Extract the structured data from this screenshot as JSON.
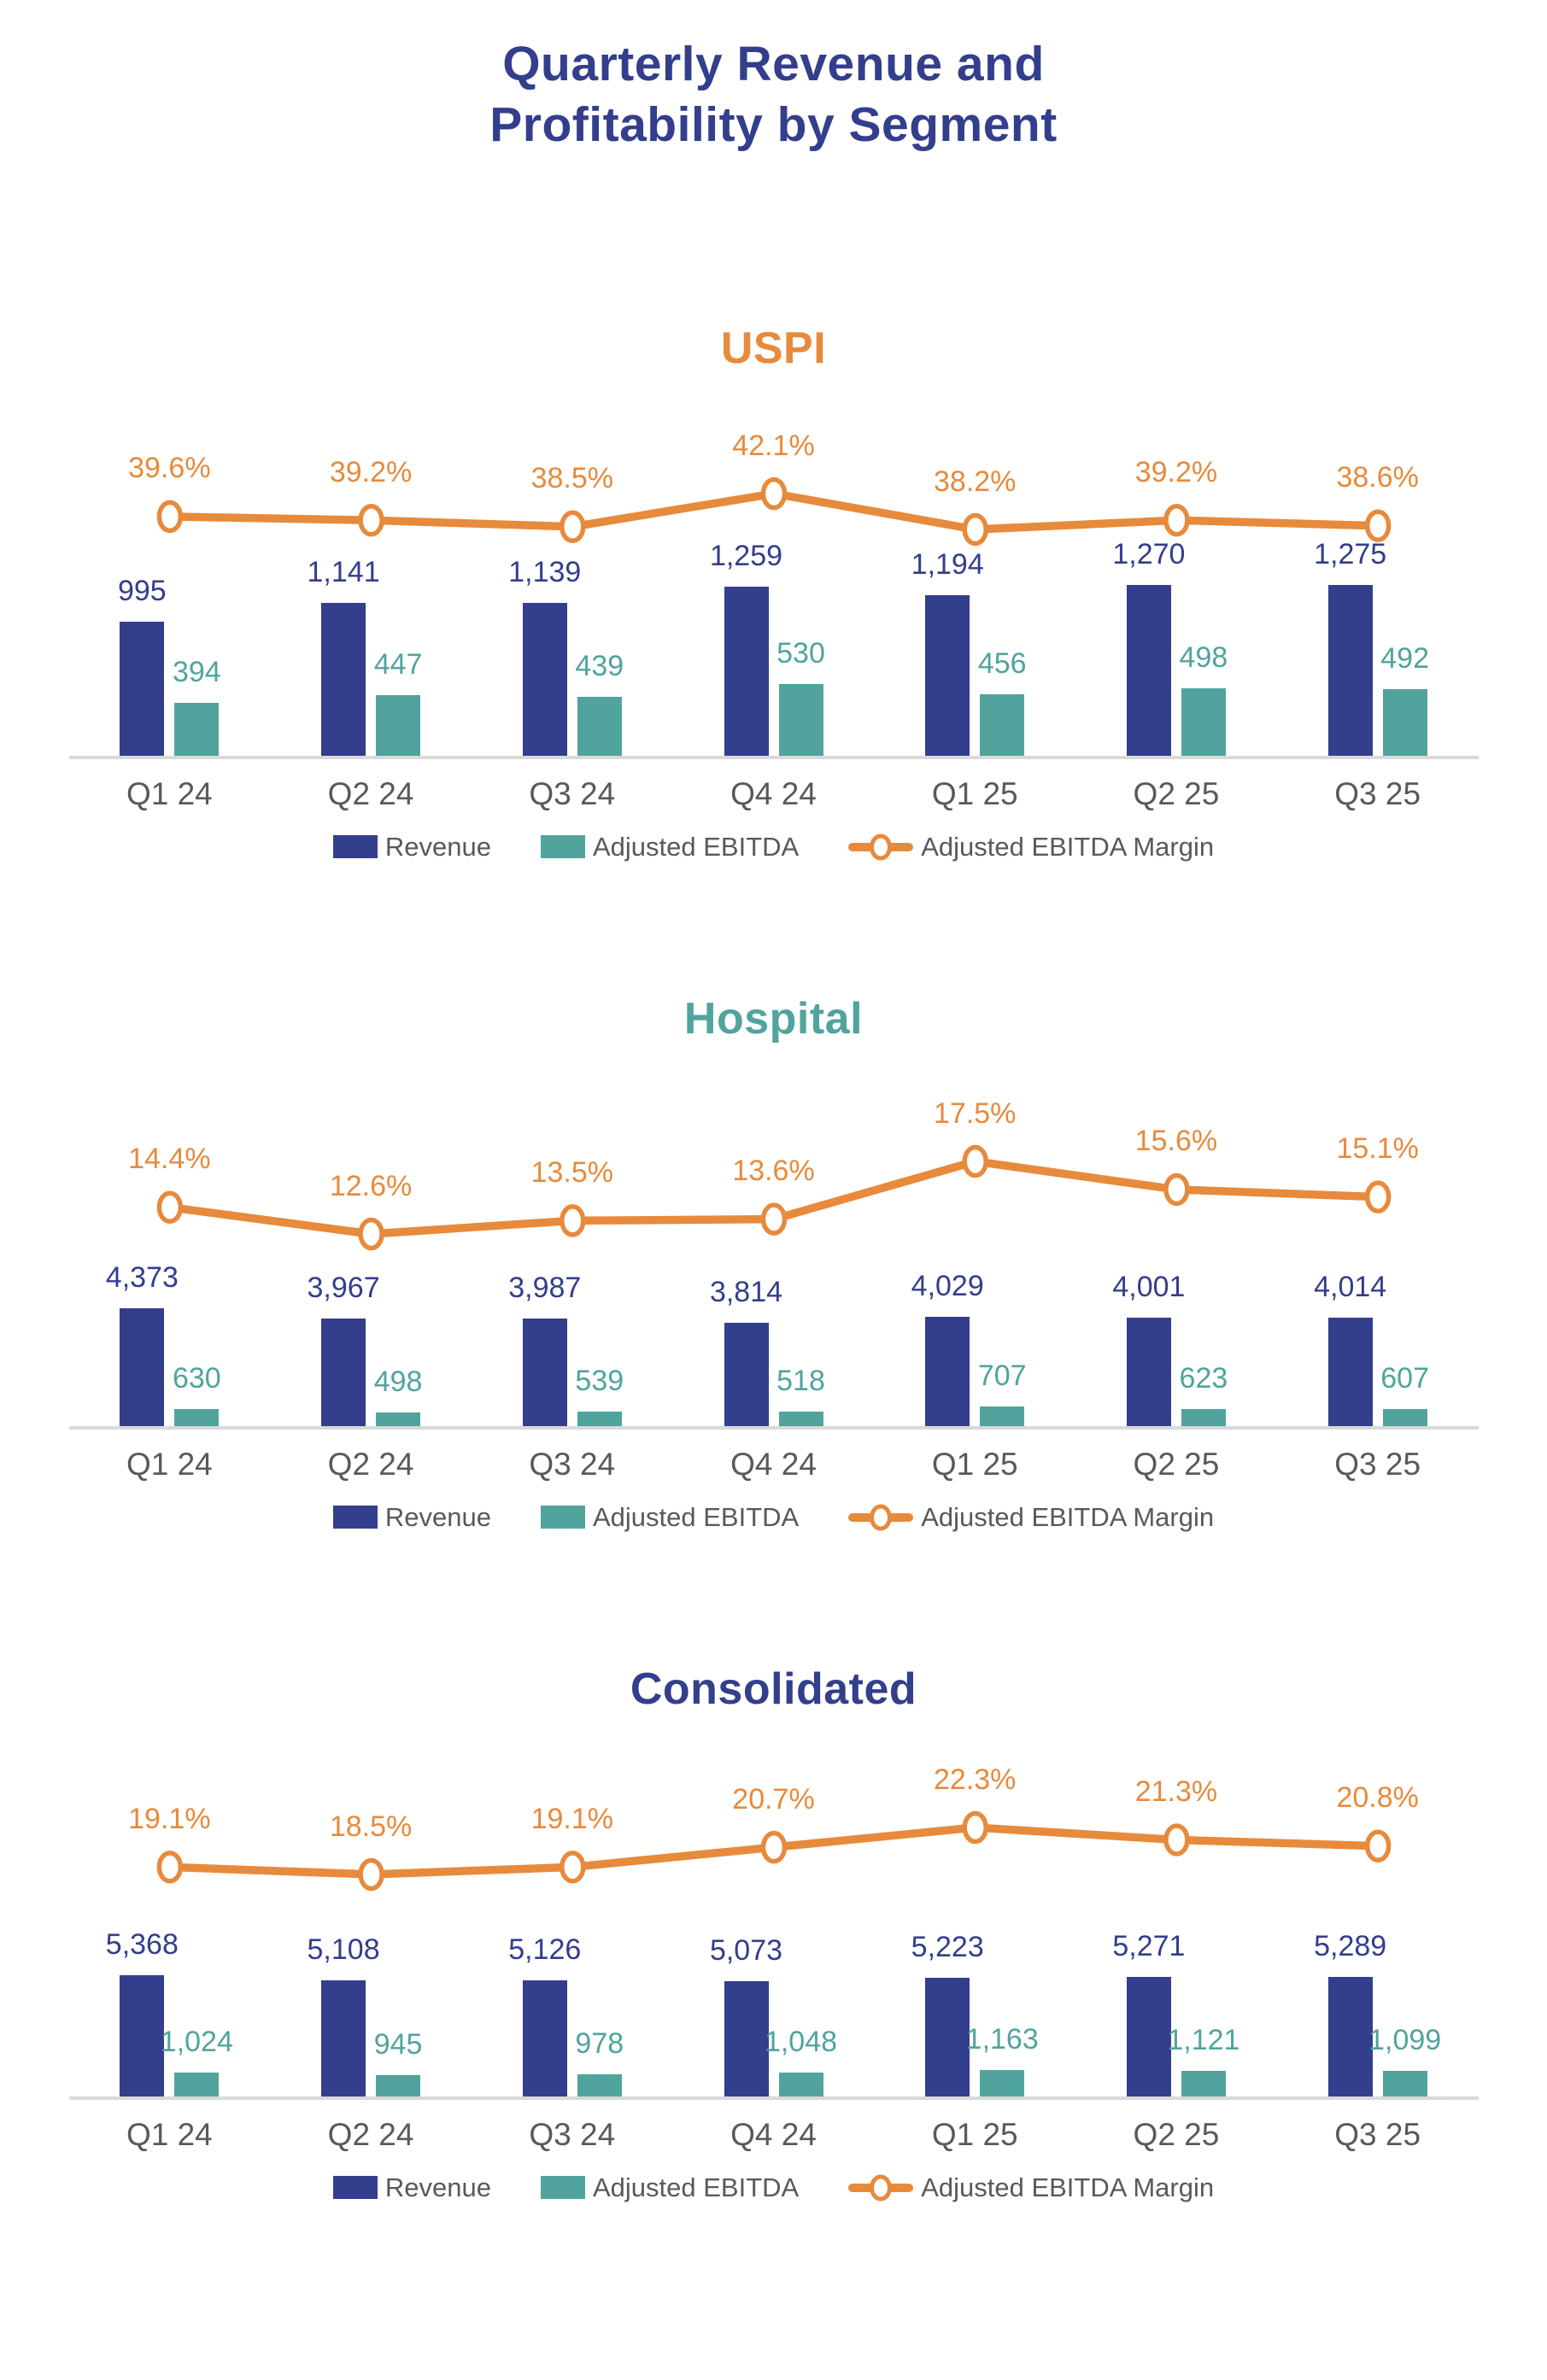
{
  "page": {
    "title_line1": "Quarterly Revenue and",
    "title_line2": "Profitability by Segment",
    "title_full": "Quarterly Revenue and Profitability by Segment"
  },
  "colors": {
    "navy": "#333E8C",
    "teal": "#50A49D",
    "orange": "#E78A3C",
    "axis_text": "#595959",
    "baseline": "#D9D9D9"
  },
  "chart_data": [
    {
      "type": "bar",
      "title": "USPI",
      "title_color": "#E78A3C",
      "categories": [
        "Q1 24",
        "Q2 24",
        "Q3 24",
        "Q4 24",
        "Q1 25",
        "Q2 25",
        "Q3 25"
      ],
      "grid": false,
      "legend_position": "bottom",
      "series": [
        {
          "name": "Revenue",
          "type": "bar",
          "color": "#333E8C",
          "values": [
            995,
            1141,
            1139,
            1259,
            1194,
            1270,
            1275
          ],
          "labels": [
            "995",
            "1,141",
            "1,139",
            "1,259",
            "1,194",
            "1,270",
            "1,275"
          ]
        },
        {
          "name": "Adjusted EBITDA",
          "type": "bar",
          "color": "#50A49D",
          "values": [
            394,
            447,
            439,
            530,
            456,
            498,
            492
          ],
          "labels": [
            "394",
            "447",
            "439",
            "530",
            "456",
            "498",
            "492"
          ]
        },
        {
          "name": "Adjusted EBITDA Margin",
          "type": "line",
          "color": "#E78A3C",
          "unit": "%",
          "values": [
            39.6,
            39.2,
            38.5,
            42.1,
            38.2,
            39.2,
            38.6
          ],
          "labels": [
            "39.6%",
            "39.2%",
            "38.5%",
            "42.1%",
            "38.2%",
            "39.2%",
            "38.6%"
          ]
        }
      ]
    },
    {
      "type": "bar",
      "title": "Hospital",
      "title_color": "#50A49D",
      "categories": [
        "Q1 24",
        "Q2 24",
        "Q3 24",
        "Q4 24",
        "Q1 25",
        "Q2 25",
        "Q3 25"
      ],
      "grid": false,
      "legend_position": "bottom",
      "series": [
        {
          "name": "Revenue",
          "type": "bar",
          "color": "#333E8C",
          "values": [
            4373,
            3967,
            3987,
            3814,
            4029,
            4001,
            4014
          ],
          "labels": [
            "4,373",
            "3,967",
            "3,987",
            "3,814",
            "4,029",
            "4,001",
            "4,014"
          ]
        },
        {
          "name": "Adjusted EBITDA",
          "type": "bar",
          "color": "#50A49D",
          "values": [
            630,
            498,
            539,
            518,
            707,
            623,
            607
          ],
          "labels": [
            "630",
            "498",
            "539",
            "518",
            "707",
            "623",
            "607"
          ]
        },
        {
          "name": "Adjusted EBITDA Margin",
          "type": "line",
          "color": "#E78A3C",
          "unit": "%",
          "values": [
            14.4,
            12.6,
            13.5,
            13.6,
            17.5,
            15.6,
            15.1
          ],
          "labels": [
            "14.4%",
            "12.6%",
            "13.5%",
            "13.6%",
            "17.5%",
            "15.6%",
            "15.1%"
          ]
        }
      ]
    },
    {
      "type": "bar",
      "title": "Consolidated",
      "title_color": "#333E8C",
      "categories": [
        "Q1 24",
        "Q2 24",
        "Q3 24",
        "Q4 24",
        "Q1 25",
        "Q2 25",
        "Q3 25"
      ],
      "grid": false,
      "legend_position": "bottom",
      "series": [
        {
          "name": "Revenue",
          "type": "bar",
          "color": "#333E8C",
          "values": [
            5368,
            5108,
            5126,
            5073,
            5223,
            5271,
            5289
          ],
          "labels": [
            "5,368",
            "5,108",
            "5,126",
            "5,073",
            "5,223",
            "5,271",
            "5,289"
          ]
        },
        {
          "name": "Adjusted EBITDA",
          "type": "bar",
          "color": "#50A49D",
          "values": [
            1024,
            945,
            978,
            1048,
            1163,
            1121,
            1099
          ],
          "labels": [
            "1,024",
            "945",
            "978",
            "1,048",
            "1,163",
            "1,121",
            "1,099"
          ]
        },
        {
          "name": "Adjusted EBITDA Margin",
          "type": "line",
          "color": "#E78A3C",
          "unit": "%",
          "values": [
            19.1,
            18.5,
            19.1,
            20.7,
            22.3,
            21.3,
            20.8
          ],
          "labels": [
            "19.1%",
            "18.5%",
            "19.1%",
            "20.7%",
            "22.3%",
            "21.3%",
            "20.8%"
          ]
        }
      ]
    }
  ]
}
